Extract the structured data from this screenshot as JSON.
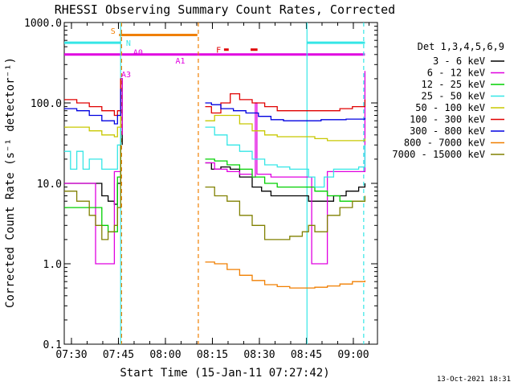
{
  "colors": {
    "background": "#ffffff",
    "axis": "#000000",
    "cyan": "#35e6e6",
    "orange": "#f07f00",
    "magenta": "#e000e0",
    "red": "#e00000"
  },
  "chart_data": {
    "type": "line",
    "title": "RHESSI Observing Summary Count Rates, Corrected",
    "xlabel": "Start Time (15-Jan-11 07:27:42)",
    "ylabel": "Corrected Count Rate (s⁻¹ detector⁻¹)",
    "x_unit": "minutes since 07:27:42",
    "xlim": [
      0,
      100
    ],
    "ylim": [
      0.1,
      1000
    ],
    "y_scale": "log",
    "grid": false,
    "x_ticks": [
      {
        "label": "07:30",
        "x": 2.3
      },
      {
        "label": "07:45",
        "x": 17.3
      },
      {
        "label": "08:00",
        "x": 32.3
      },
      {
        "label": "08:15",
        "x": 47.3
      },
      {
        "label": "08:30",
        "x": 62.3
      },
      {
        "label": "08:45",
        "x": 77.3
      },
      {
        "label": "09:00",
        "x": 92.3
      }
    ],
    "y_ticks": [
      {
        "label": "1000.0",
        "y": 1000
      },
      {
        "label": "100.0",
        "y": 100
      },
      {
        "label": "10.0",
        "y": 10
      },
      {
        "label": "1.0",
        "y": 1
      },
      {
        "label": "0.1",
        "y": 0.1
      }
    ],
    "legend_title": "Det 1,3,4,5,6,9",
    "legend_placement": "outside-right",
    "vlines": [
      {
        "x": 18.0,
        "color": "#35e6e6",
        "dash": false
      },
      {
        "x": 18.3,
        "color": "#f07f00",
        "dash": true
      },
      {
        "x": 42.8,
        "color": "#f07f00",
        "dash": true
      },
      {
        "x": 77.5,
        "color": "#35e6e6",
        "dash": false
      },
      {
        "x": 95.6,
        "color": "#35e6e6",
        "dash": true
      }
    ],
    "flag_bars": [
      {
        "label": "S",
        "color": "#f07f00",
        "x0": 17.5,
        "x1": 42.5,
        "y": 700
      },
      {
        "label": "N",
        "color": "#35e6e6",
        "x0": 0,
        "x1": 18.0,
        "y": 560
      },
      {
        "label": "N",
        "color": "#35e6e6",
        "x0": 77.5,
        "x1": 96.0,
        "y": 560
      },
      {
        "label": "F",
        "color": "#e00000",
        "x0": 51.0,
        "x1": 52.5,
        "y": 460
      },
      {
        "label": "",
        "color": "#e00000",
        "x0": 59.5,
        "x1": 61.7,
        "y": 460
      },
      {
        "label": "",
        "color": "#e000e0",
        "x0": 0,
        "x1": 96.0,
        "y": 400
      }
    ],
    "annotations": [
      {
        "text": "S",
        "x": 14.8,
        "y": 790,
        "color": "#f07f00"
      },
      {
        "text": "N",
        "x": 19.7,
        "y": 560,
        "color": "#35e6e6"
      },
      {
        "text": "F",
        "x": 48.5,
        "y": 460,
        "color": "#e00000"
      },
      {
        "text": "A0",
        "x": 22.0,
        "y": 430,
        "color": "#e000e0"
      },
      {
        "text": "A1",
        "x": 35.5,
        "y": 340,
        "color": "#e000e0"
      },
      {
        "text": "A3",
        "x": 18.2,
        "y": 230,
        "color": "#e000e0"
      }
    ],
    "series": [
      {
        "name": "3 - 6 keV",
        "color": "#000000",
        "points": [
          [
            0,
            10
          ],
          [
            4,
            10
          ],
          [
            8,
            10
          ],
          [
            12,
            7
          ],
          [
            14,
            6
          ],
          [
            16,
            5.5
          ],
          [
            17,
            10
          ],
          [
            18,
            200
          ],
          [
            18.5,
            30
          ],
          [
            null,
            null
          ],
          [
            45,
            18
          ],
          [
            47,
            15
          ],
          [
            50,
            16
          ],
          [
            53,
            15
          ],
          [
            56,
            12
          ],
          [
            60,
            9
          ],
          [
            63,
            8
          ],
          [
            66,
            7
          ],
          [
            70,
            7
          ],
          [
            74,
            7
          ],
          [
            78,
            6
          ],
          [
            80,
            6
          ],
          [
            83,
            6
          ],
          [
            86,
            7
          ],
          [
            90,
            8
          ],
          [
            94,
            9
          ],
          [
            96,
            10
          ]
        ]
      },
      {
        "name": "6 - 12 keV",
        "color": "#e000e0",
        "points": [
          [
            0,
            10
          ],
          [
            4,
            10
          ],
          [
            8,
            10
          ],
          [
            10,
            1
          ],
          [
            14,
            1
          ],
          [
            16,
            14
          ],
          [
            17,
            14
          ],
          [
            18,
            200
          ],
          [
            18.5,
            40
          ],
          [
            null,
            null
          ],
          [
            45,
            18
          ],
          [
            48,
            15
          ],
          [
            52,
            14
          ],
          [
            56,
            13
          ],
          [
            60,
            12
          ],
          [
            61,
            100
          ],
          [
            61.5,
            13
          ],
          [
            66,
            12
          ],
          [
            70,
            12
          ],
          [
            74,
            12
          ],
          [
            77,
            12
          ],
          [
            79,
            1
          ],
          [
            82,
            1
          ],
          [
            84,
            14
          ],
          [
            88,
            14
          ],
          [
            92,
            14
          ],
          [
            95.5,
            14
          ],
          [
            96,
            250
          ]
        ]
      },
      {
        "name": "12 - 25 keV",
        "color": "#00d000",
        "points": [
          [
            0,
            5
          ],
          [
            4,
            5
          ],
          [
            8,
            5
          ],
          [
            12,
            3
          ],
          [
            14,
            2.5
          ],
          [
            16,
            2.5
          ],
          [
            17,
            12
          ],
          [
            18,
            200
          ],
          [
            null,
            null
          ],
          [
            45,
            20
          ],
          [
            48,
            19
          ],
          [
            52,
            17
          ],
          [
            56,
            15
          ],
          [
            60,
            12
          ],
          [
            64,
            10
          ],
          [
            68,
            9
          ],
          [
            72,
            9
          ],
          [
            76,
            9
          ],
          [
            80,
            8
          ],
          [
            84,
            7
          ],
          [
            88,
            6
          ],
          [
            92,
            6
          ],
          [
            96,
            6
          ]
        ]
      },
      {
        "name": "25 - 50 keV",
        "color": "#35e6e6",
        "points": [
          [
            0,
            25
          ],
          [
            2,
            15
          ],
          [
            4,
            25
          ],
          [
            6,
            15
          ],
          [
            8,
            20
          ],
          [
            12,
            15
          ],
          [
            14,
            15
          ],
          [
            16,
            15
          ],
          [
            17,
            30
          ],
          [
            18,
            200
          ],
          [
            null,
            null
          ],
          [
            45,
            50
          ],
          [
            48,
            40
          ],
          [
            52,
            30
          ],
          [
            56,
            25
          ],
          [
            60,
            20
          ],
          [
            64,
            17
          ],
          [
            68,
            16
          ],
          [
            72,
            15
          ],
          [
            76,
            15
          ],
          [
            78,
            12
          ],
          [
            80,
            9
          ],
          [
            83,
            12
          ],
          [
            86,
            15
          ],
          [
            90,
            15
          ],
          [
            94,
            16
          ],
          [
            96,
            30
          ]
        ]
      },
      {
        "name": "50 - 100 keV",
        "color": "#c8c800",
        "points": [
          [
            0,
            50
          ],
          [
            4,
            50
          ],
          [
            8,
            45
          ],
          [
            12,
            40
          ],
          [
            16,
            38
          ],
          [
            17,
            50
          ],
          [
            18,
            200
          ],
          [
            null,
            null
          ],
          [
            45,
            60
          ],
          [
            48,
            70
          ],
          [
            52,
            70
          ],
          [
            56,
            55
          ],
          [
            60,
            45
          ],
          [
            64,
            40
          ],
          [
            68,
            38
          ],
          [
            72,
            38
          ],
          [
            76,
            38
          ],
          [
            80,
            36
          ],
          [
            84,
            34
          ],
          [
            88,
            34
          ],
          [
            92,
            34
          ],
          [
            96,
            36
          ]
        ]
      },
      {
        "name": "100 - 300 keV",
        "color": "#e00000",
        "points": [
          [
            0,
            110
          ],
          [
            4,
            100
          ],
          [
            8,
            90
          ],
          [
            12,
            80
          ],
          [
            16,
            70
          ],
          [
            17,
            80
          ],
          [
            18,
            200
          ],
          [
            null,
            null
          ],
          [
            45,
            90
          ],
          [
            47,
            75
          ],
          [
            50,
            100
          ],
          [
            53,
            130
          ],
          [
            56,
            110
          ],
          [
            60,
            100
          ],
          [
            64,
            90
          ],
          [
            68,
            80
          ],
          [
            72,
            80
          ],
          [
            76,
            80
          ],
          [
            80,
            80
          ],
          [
            84,
            80
          ],
          [
            88,
            85
          ],
          [
            92,
            90
          ],
          [
            95.5,
            90
          ],
          [
            96,
            110
          ]
        ]
      },
      {
        "name": "300 - 800 keV",
        "color": "#0000e0",
        "points": [
          [
            0,
            85
          ],
          [
            4,
            80
          ],
          [
            8,
            70
          ],
          [
            12,
            60
          ],
          [
            16,
            55
          ],
          [
            17,
            70
          ],
          [
            18,
            150
          ],
          [
            null,
            null
          ],
          [
            45,
            100
          ],
          [
            47,
            95
          ],
          [
            50,
            85
          ],
          [
            54,
            80
          ],
          [
            58,
            75
          ],
          [
            62,
            68
          ],
          [
            66,
            62
          ],
          [
            70,
            60
          ],
          [
            74,
            60
          ],
          [
            78,
            60
          ],
          [
            82,
            62
          ],
          [
            86,
            62
          ],
          [
            90,
            63
          ],
          [
            96,
            65
          ]
        ]
      },
      {
        "name": "800 - 7000 keV",
        "color": "#f07f00",
        "points": [
          [
            null,
            null
          ],
          [
            45,
            1.05
          ],
          [
            48,
            1
          ],
          [
            52,
            0.85
          ],
          [
            56,
            0.72
          ],
          [
            60,
            0.62
          ],
          [
            64,
            0.55
          ],
          [
            68,
            0.52
          ],
          [
            72,
            0.5
          ],
          [
            76,
            0.5
          ],
          [
            80,
            0.51
          ],
          [
            84,
            0.53
          ],
          [
            88,
            0.56
          ],
          [
            92,
            0.6
          ],
          [
            96,
            0.62
          ]
        ]
      },
      {
        "name": "7000 - 15000 keV",
        "color": "#808000",
        "points": [
          [
            0,
            8
          ],
          [
            4,
            6
          ],
          [
            8,
            4
          ],
          [
            10,
            3
          ],
          [
            12,
            2
          ],
          [
            14,
            2.5
          ],
          [
            16,
            3
          ],
          [
            17,
            5
          ],
          [
            18,
            30
          ],
          [
            null,
            null
          ],
          [
            45,
            9
          ],
          [
            48,
            7
          ],
          [
            52,
            6
          ],
          [
            56,
            4
          ],
          [
            60,
            3
          ],
          [
            64,
            2
          ],
          [
            68,
            2
          ],
          [
            72,
            2.2
          ],
          [
            76,
            2.5
          ],
          [
            78,
            3
          ],
          [
            80,
            2.5
          ],
          [
            84,
            4
          ],
          [
            88,
            5
          ],
          [
            92,
            6
          ],
          [
            96,
            7
          ]
        ]
      }
    ]
  },
  "footer": {
    "date_stamp": "13-Oct-2021 18:31"
  }
}
